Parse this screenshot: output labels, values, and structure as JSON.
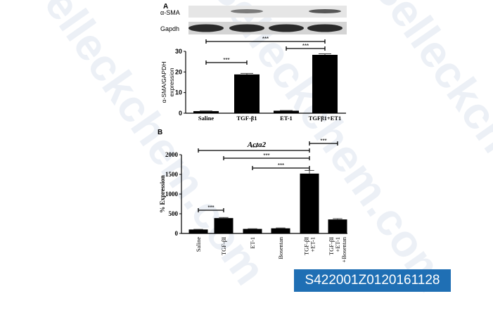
{
  "watermark": "Selleckchem.com",
  "image_id": "S422001Z0120161128",
  "chart_data": [
    {
      "panel": "A",
      "type": "bar",
      "blot_labels": [
        "α-SMA",
        "Gapdh"
      ],
      "categories": [
        "Saline",
        "TGF-β1",
        "ET-1",
        "TGFβ1+ET1"
      ],
      "values": [
        1,
        18.8,
        1.2,
        28.3
      ],
      "errors": [
        0.1,
        0.5,
        0.1,
        0.5
      ],
      "ylabel": "α-SMA/GAPDH expression",
      "ylabel_lines": [
        "α-SMA/GAPDH",
        "expression"
      ],
      "ylim": [
        0,
        30
      ],
      "yticks": [
        "0",
        "10",
        "20",
        "30"
      ],
      "significance": [
        {
          "from": 0,
          "to": 3,
          "label": "***",
          "level": 2
        },
        {
          "from": 2,
          "to": 3,
          "label": "***",
          "level": 1
        },
        {
          "from": 0,
          "to": 1,
          "label": "***",
          "level": 0
        }
      ],
      "bar_color": "#000000"
    },
    {
      "panel": "B",
      "type": "bar",
      "title": "Acta2",
      "categories": [
        "Saline",
        "TGF-βI",
        "ET-1",
        "Bosentan",
        "TGF-βI\n+ET-1",
        "TGF-βI\n+ET-1\n+Bosentan"
      ],
      "values": [
        100,
        390,
        115,
        130,
        1520,
        355
      ],
      "errors": [
        5,
        15,
        5,
        10,
        80,
        20
      ],
      "ylabel": "% Expression",
      "ylim": [
        0,
        2000
      ],
      "yticks": [
        "0",
        "500",
        "1000",
        "1500",
        "2000"
      ],
      "significance": [
        {
          "from": 0,
          "to": 4,
          "label": "***"
        },
        {
          "from": 1,
          "to": 4,
          "label": "***"
        },
        {
          "from": 2,
          "to": 4,
          "label": "***"
        },
        {
          "from": 4,
          "to": 5,
          "label": "***"
        },
        {
          "from": 0,
          "to": 1,
          "label": "***"
        }
      ],
      "bar_color": "#000000"
    }
  ]
}
